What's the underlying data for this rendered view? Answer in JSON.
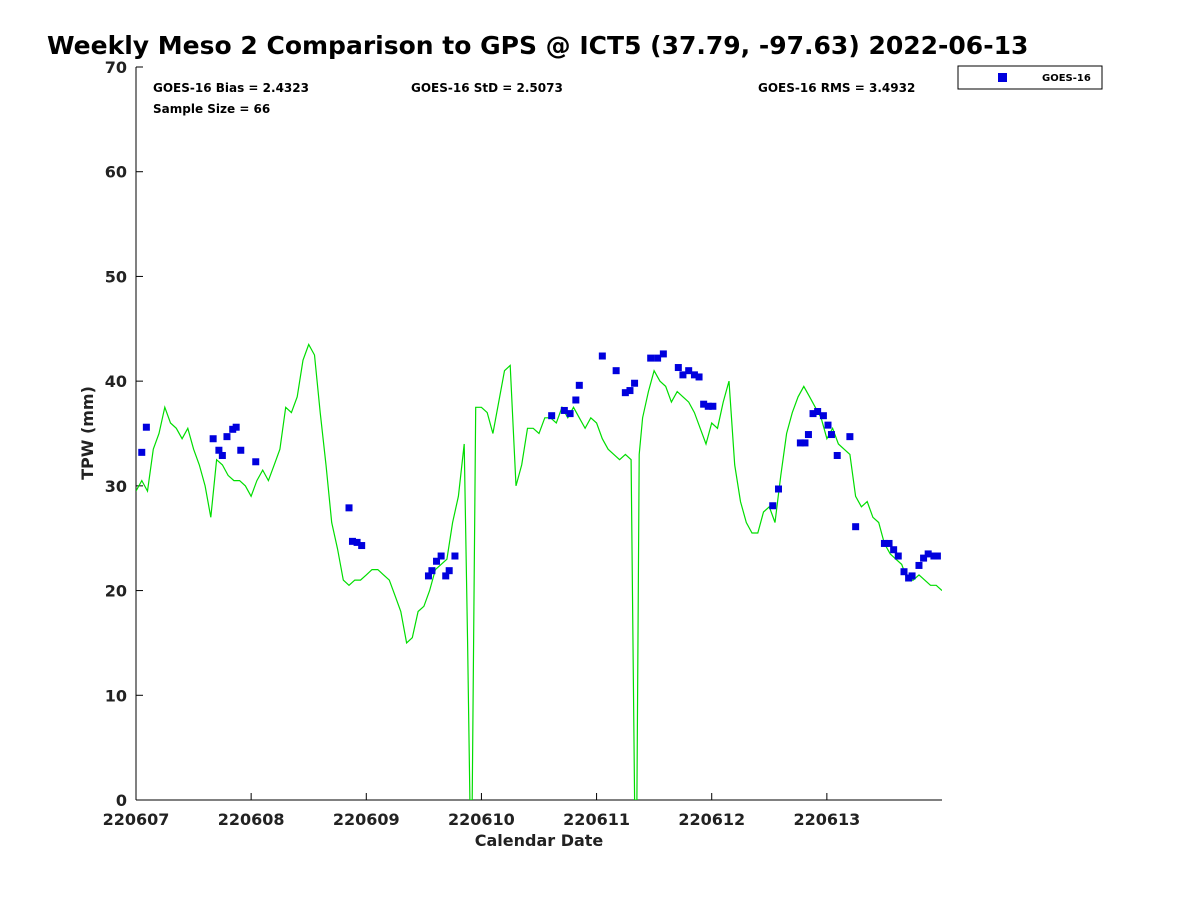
{
  "chart_data": {
    "type": "scatter",
    "title": "Weekly Meso 2 Comparison to GPS @ ICT5 (37.79, -97.63) 2022-06-13",
    "xlabel": "Calendar Date",
    "ylabel": "TPW (mm)",
    "xlim": [
      0,
      7
    ],
    "ylim": [
      0,
      70
    ],
    "yticks": [
      0,
      10,
      20,
      30,
      40,
      50,
      60,
      70
    ],
    "xticks": [
      0,
      1,
      2,
      3,
      4,
      5,
      6
    ],
    "xtick_labels": [
      "220607",
      "220608",
      "220609",
      "220610",
      "220611",
      "220612",
      "220613"
    ],
    "stats": {
      "bias": "GOES-16 Bias = 2.4323",
      "std": "GOES-16 StD = 2.5073",
      "rms": "GOES-16 RMS = 3.4932",
      "sample": "Sample Size = 66"
    },
    "legend": {
      "label": "GOES-16",
      "position": "top-right"
    },
    "colors": {
      "scatter": "#0000dd",
      "line": "#00dd00"
    },
    "series": [
      {
        "name": "GOES-16",
        "kind": "scatter",
        "x": [
          0.05,
          0.09,
          0.67,
          0.72,
          0.75,
          0.79,
          0.84,
          0.87,
          0.91,
          1.04,
          1.85,
          1.88,
          1.92,
          1.96,
          2.54,
          2.57,
          2.61,
          2.65,
          2.69,
          2.72,
          2.77,
          3.61,
          3.72,
          3.77,
          3.82,
          3.85,
          4.05,
          4.17,
          4.25,
          4.29,
          4.33,
          4.47,
          4.53,
          4.58,
          4.71,
          4.75,
          4.8,
          4.85,
          4.89,
          4.93,
          4.97,
          5.01,
          5.53,
          5.58,
          5.77,
          5.81,
          5.84,
          5.88,
          5.92,
          5.97,
          6.01,
          6.04,
          6.09,
          6.2,
          6.25,
          6.5,
          6.54,
          6.58,
          6.62,
          6.67,
          6.71,
          6.74,
          6.8,
          6.84,
          6.88,
          6.93,
          6.96
        ],
        "y": [
          33.2,
          35.6,
          34.5,
          33.4,
          32.9,
          34.7,
          35.4,
          35.6,
          33.4,
          32.3,
          27.9,
          24.7,
          24.6,
          24.3,
          21.4,
          21.9,
          22.8,
          23.3,
          21.4,
          21.9,
          23.3,
          36.7,
          37.2,
          36.9,
          38.2,
          39.6,
          42.4,
          41.0,
          38.9,
          39.1,
          39.8,
          42.2,
          42.2,
          42.6,
          41.3,
          40.6,
          41.0,
          40.6,
          40.4,
          37.8,
          37.6,
          37.6,
          28.1,
          29.7,
          34.1,
          34.1,
          34.9,
          36.9,
          37.1,
          36.7,
          35.8,
          34.9,
          32.9,
          34.7,
          26.1,
          24.5,
          24.5,
          23.9,
          23.3,
          21.8,
          21.2,
          21.4,
          22.4,
          23.1,
          23.5,
          23.3,
          23.3
        ]
      },
      {
        "name": "GPS",
        "kind": "line",
        "x": [
          0.0,
          0.05,
          0.1,
          0.15,
          0.2,
          0.25,
          0.3,
          0.35,
          0.4,
          0.45,
          0.5,
          0.55,
          0.6,
          0.65,
          0.7,
          0.75,
          0.8,
          0.85,
          0.9,
          0.95,
          1.0,
          1.05,
          1.1,
          1.15,
          1.2,
          1.25,
          1.3,
          1.35,
          1.4,
          1.45,
          1.5,
          1.55,
          1.6,
          1.65,
          1.7,
          1.75,
          1.8,
          1.85,
          1.9,
          1.95,
          2.0,
          2.05,
          2.1,
          2.15,
          2.2,
          2.25,
          2.3,
          2.35,
          2.4,
          2.45,
          2.5,
          2.55,
          2.6,
          2.65,
          2.7,
          2.75,
          2.8,
          2.85,
          2.88,
          2.9,
          2.92,
          2.95,
          3.0,
          3.05,
          3.1,
          3.15,
          3.2,
          3.25,
          3.3,
          3.35,
          3.4,
          3.45,
          3.5,
          3.55,
          3.6,
          3.65,
          3.7,
          3.75,
          3.8,
          3.85,
          3.9,
          3.95,
          4.0,
          4.05,
          4.1,
          4.15,
          4.2,
          4.25,
          4.3,
          4.33,
          4.35,
          4.37,
          4.4,
          4.45,
          4.5,
          4.55,
          4.6,
          4.65,
          4.7,
          4.75,
          4.8,
          4.85,
          4.9,
          4.95,
          5.0,
          5.05,
          5.1,
          5.15,
          5.2,
          5.25,
          5.3,
          5.35,
          5.4,
          5.45,
          5.5,
          5.55,
          5.6,
          5.65,
          5.7,
          5.75,
          5.8,
          5.85,
          5.9,
          5.95,
          6.0,
          6.05,
          6.1,
          6.15,
          6.2,
          6.25,
          6.3,
          6.35,
          6.4,
          6.45,
          6.5,
          6.55,
          6.6,
          6.65,
          6.7,
          6.75,
          6.8,
          6.85,
          6.9,
          6.95,
          7.0
        ],
        "y": [
          29.5,
          30.5,
          29.5,
          33.5,
          35.0,
          37.5,
          36.0,
          35.5,
          34.5,
          35.5,
          33.5,
          32.0,
          30.0,
          27.0,
          32.5,
          32.0,
          31.0,
          30.5,
          30.5,
          30.0,
          29.0,
          30.5,
          31.5,
          30.5,
          32.0,
          33.5,
          37.5,
          37.0,
          38.5,
          42.0,
          43.5,
          42.5,
          37.0,
          32.0,
          26.5,
          24.0,
          21.0,
          20.5,
          21.0,
          21.0,
          21.5,
          22.0,
          22.0,
          21.5,
          21.0,
          19.5,
          18.0,
          15.0,
          15.5,
          18.0,
          18.5,
          20.0,
          22.0,
          22.5,
          23.0,
          26.5,
          29.0,
          34.0,
          15.0,
          0.0,
          0.0,
          37.5,
          37.5,
          37.0,
          35.0,
          38.0,
          41.0,
          41.5,
          30.0,
          32.0,
          35.5,
          35.5,
          35.0,
          36.5,
          36.5,
          36.0,
          37.5,
          36.5,
          37.5,
          36.5,
          35.5,
          36.5,
          36.0,
          34.5,
          33.5,
          33.0,
          32.5,
          33.0,
          32.5,
          0.0,
          0.0,
          33.0,
          36.5,
          39.0,
          41.0,
          40.0,
          39.5,
          38.0,
          39.0,
          38.5,
          38.0,
          37.0,
          35.5,
          34.0,
          36.0,
          35.5,
          38.0,
          40.0,
          32.0,
          28.5,
          26.5,
          25.5,
          25.5,
          27.5,
          28.0,
          26.5,
          31.0,
          35.0,
          37.0,
          38.5,
          39.5,
          38.5,
          37.5,
          36.5,
          34.5,
          35.5,
          34.0,
          33.5,
          33.0,
          29.0,
          28.0,
          28.5,
          27.0,
          26.5,
          24.5,
          23.5,
          23.0,
          22.5,
          21.0,
          21.0,
          21.5,
          21.0,
          20.5,
          20.5,
          20.0
        ]
      }
    ]
  }
}
